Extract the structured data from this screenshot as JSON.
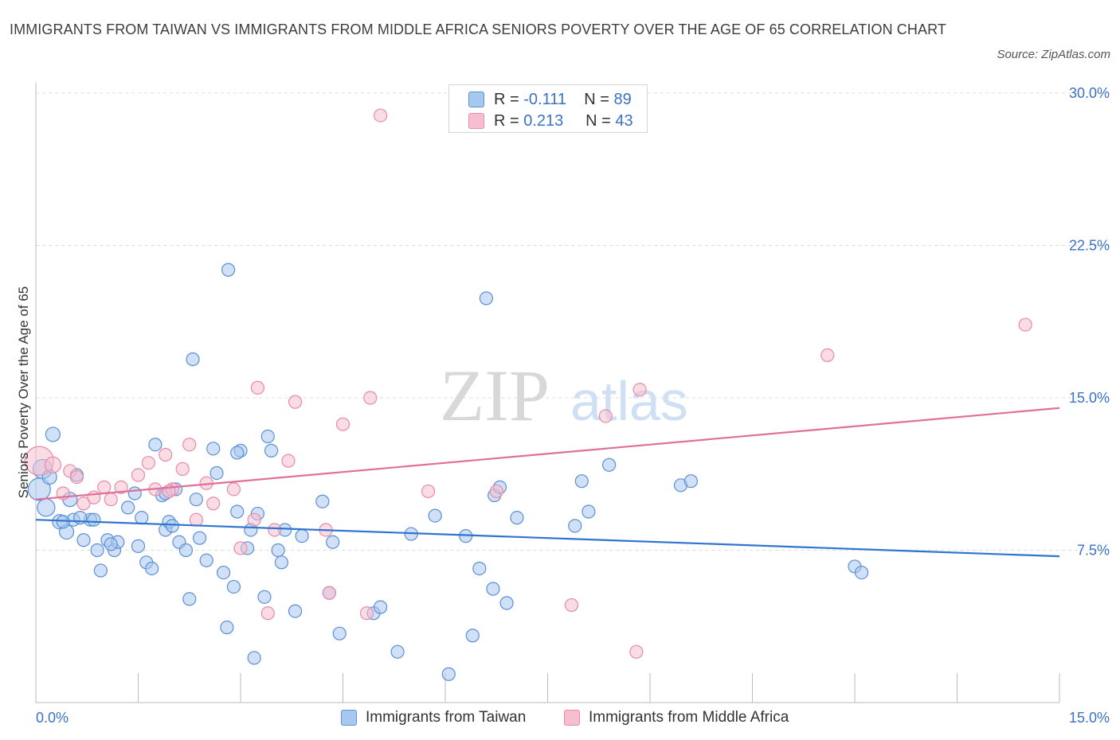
{
  "title": "IMMIGRANTS FROM TAIWAN VS IMMIGRANTS FROM MIDDLE AFRICA SENIORS POVERTY OVER THE AGE OF 65 CORRELATION CHART",
  "source": "Source: ZipAtlas.com",
  "watermark": {
    "zip": "ZIP",
    "atlas": "atlas"
  },
  "colors": {
    "taiwan_fill": "#a9c8f0",
    "taiwan_stroke": "#5b8fd6",
    "taiwan_line": "#2f74cf",
    "africa_fill": "#f6bfd0",
    "africa_stroke": "#e88aa8",
    "africa_line": "#e06f99",
    "tick_text": "#3a72c4",
    "grid": "#dcdcdc"
  },
  "legend_top": [
    {
      "r_label": "R =",
      "r_value": "-0.111",
      "n_label": "N =",
      "n_value": "89"
    },
    {
      "r_label": "R =",
      "r_value": "0.213",
      "n_label": "N =",
      "n_value": "43"
    }
  ],
  "legend_bottom": [
    "Immigrants from Taiwan",
    "Immigrants from Middle Africa"
  ],
  "chart_data": {
    "type": "scatter",
    "title": "IMMIGRANTS FROM TAIWAN VS IMMIGRANTS FROM MIDDLE AFRICA SENIORS POVERTY OVER THE AGE OF 65 CORRELATION CHART",
    "xlabel": "",
    "ylabel": "Seniors Poverty Over the Age of 65",
    "xlim": [
      0,
      15
    ],
    "ylim": [
      0,
      30
    ],
    "x_ticks": [
      "0.0%",
      "15.0%"
    ],
    "y_ticks": [
      {
        "value": 7.5,
        "label": "7.5%"
      },
      {
        "value": 15,
        "label": "15.0%"
      },
      {
        "value": 22.5,
        "label": "22.5%"
      },
      {
        "value": 30,
        "label": "30.0%"
      }
    ],
    "grid": "horizontal dashed",
    "legend_position": "top-center",
    "series": [
      {
        "name": "Immigrants from Taiwan",
        "color": "#a9c8f0",
        "trend": {
          "x": [
            0,
            15
          ],
          "y": [
            9.0,
            7.2
          ]
        },
        "points": [
          [
            0.1,
            11.5,
            12
          ],
          [
            0.05,
            10.5,
            14
          ],
          [
            0.15,
            9.6,
            11
          ],
          [
            0.25,
            13.2,
            9
          ],
          [
            0.2,
            11.1,
            9
          ],
          [
            0.35,
            8.9,
            9
          ],
          [
            0.45,
            8.4,
            9
          ],
          [
            0.5,
            10,
            9
          ],
          [
            0.6,
            11.2,
            8
          ],
          [
            0.7,
            8,
            8
          ],
          [
            0.8,
            9,
            8
          ],
          [
            0.9,
            7.5,
            8
          ],
          [
            0.95,
            6.5,
            8
          ],
          [
            1.05,
            8,
            8
          ],
          [
            1.15,
            7.5,
            8
          ],
          [
            1.2,
            7.9,
            8
          ],
          [
            1.35,
            9.6,
            8
          ],
          [
            1.45,
            10.3,
            8
          ],
          [
            1.5,
            7.7,
            8
          ],
          [
            1.55,
            9.1,
            8
          ],
          [
            1.62,
            6.9,
            8
          ],
          [
            1.7,
            6.6,
            8
          ],
          [
            1.75,
            12.7,
            8
          ],
          [
            1.85,
            10.2,
            8
          ],
          [
            1.9,
            8.5,
            8
          ],
          [
            1.95,
            8.9,
            8
          ],
          [
            2.0,
            8.7,
            8
          ],
          [
            2.05,
            10.5,
            8
          ],
          [
            2.1,
            7.9,
            8
          ],
          [
            2.2,
            7.5,
            8
          ],
          [
            2.25,
            5.1,
            8
          ],
          [
            2.3,
            16.9,
            8
          ],
          [
            2.35,
            10.0,
            8
          ],
          [
            2.4,
            8.1,
            8
          ],
          [
            2.5,
            7.0,
            8
          ],
          [
            2.6,
            12.5,
            8
          ],
          [
            2.65,
            11.3,
            8
          ],
          [
            2.75,
            6.4,
            8
          ],
          [
            2.8,
            3.7,
            8
          ],
          [
            2.82,
            21.3,
            8
          ],
          [
            2.9,
            5.7,
            8
          ],
          [
            2.95,
            9.4,
            8
          ],
          [
            3.0,
            12.4,
            8
          ],
          [
            3.1,
            7.6,
            8
          ],
          [
            3.15,
            8.5,
            8
          ],
          [
            3.2,
            2.2,
            8
          ],
          [
            3.25,
            9.3,
            8
          ],
          [
            3.35,
            5.2,
            8
          ],
          [
            3.4,
            13.1,
            8
          ],
          [
            3.45,
            12.4,
            8
          ],
          [
            3.55,
            7.5,
            8
          ],
          [
            3.6,
            6.9,
            8
          ],
          [
            3.8,
            4.5,
            8
          ],
          [
            3.9,
            8.2,
            8
          ],
          [
            4.2,
            9.9,
            8
          ],
          [
            4.3,
            5.4,
            8
          ],
          [
            4.35,
            7.9,
            8
          ],
          [
            4.45,
            3.4,
            8
          ],
          [
            4.95,
            4.4,
            8
          ],
          [
            5.05,
            4.7,
            8
          ],
          [
            5.3,
            2.5,
            8
          ],
          [
            5.5,
            8.3,
            8
          ],
          [
            5.85,
            9.2,
            8
          ],
          [
            6.05,
            1.4,
            8
          ],
          [
            6.3,
            8.2,
            8
          ],
          [
            6.4,
            3.3,
            8
          ],
          [
            6.5,
            6.6,
            8
          ],
          [
            6.6,
            19.9,
            8
          ],
          [
            6.7,
            5.6,
            8
          ],
          [
            6.72,
            10.2,
            8
          ],
          [
            6.8,
            10.6,
            8
          ],
          [
            6.9,
            4.9,
            8
          ],
          [
            7.05,
            9.1,
            8
          ],
          [
            7.9,
            8.7,
            8
          ],
          [
            8.0,
            10.9,
            8
          ],
          [
            8.1,
            9.4,
            8
          ],
          [
            8.4,
            11.7,
            8
          ],
          [
            9.45,
            10.7,
            8
          ],
          [
            9.6,
            10.9,
            8
          ],
          [
            12.0,
            6.7,
            8
          ],
          [
            12.1,
            6.4,
            8
          ],
          [
            0.55,
            9.0,
            8
          ],
          [
            0.65,
            9.1,
            8
          ],
          [
            1.1,
            7.8,
            8
          ],
          [
            1.9,
            10.3,
            8
          ],
          [
            2.95,
            12.3,
            8
          ],
          [
            3.65,
            8.5,
            8
          ],
          [
            0.85,
            9.0,
            8
          ],
          [
            0.4,
            8.9,
            8
          ]
        ]
      },
      {
        "name": "Immigrants from Middle Africa",
        "color": "#f6bfd0",
        "trend": {
          "x": [
            0,
            15
          ],
          "y": [
            10.0,
            14.5
          ]
        },
        "points": [
          [
            0.05,
            11.9,
            18
          ],
          [
            0.25,
            11.7,
            10
          ],
          [
            0.4,
            10.3,
            8
          ],
          [
            0.5,
            11.4,
            8
          ],
          [
            0.6,
            11.1,
            8
          ],
          [
            0.7,
            9.8,
            8
          ],
          [
            0.85,
            10.1,
            8
          ],
          [
            1.0,
            10.6,
            8
          ],
          [
            1.1,
            10.0,
            8
          ],
          [
            1.25,
            10.6,
            8
          ],
          [
            1.5,
            11.2,
            8
          ],
          [
            1.65,
            11.8,
            8
          ],
          [
            1.75,
            10.5,
            8
          ],
          [
            1.9,
            12.2,
            8
          ],
          [
            2.0,
            10.5,
            8
          ],
          [
            2.15,
            11.5,
            8
          ],
          [
            2.25,
            12.7,
            8
          ],
          [
            2.35,
            9.0,
            8
          ],
          [
            2.5,
            10.8,
            8
          ],
          [
            2.6,
            9.8,
            8
          ],
          [
            2.9,
            10.5,
            8
          ],
          [
            3.0,
            7.6,
            8
          ],
          [
            3.2,
            9.0,
            8
          ],
          [
            3.25,
            15.5,
            8
          ],
          [
            3.4,
            4.4,
            8
          ],
          [
            3.5,
            8.5,
            8
          ],
          [
            3.7,
            11.9,
            8
          ],
          [
            3.8,
            14.8,
            8
          ],
          [
            4.25,
            8.5,
            8
          ],
          [
            4.3,
            5.4,
            8
          ],
          [
            4.5,
            13.7,
            8
          ],
          [
            4.85,
            4.4,
            8
          ],
          [
            4.9,
            15.0,
            8
          ],
          [
            5.05,
            28.9,
            8
          ],
          [
            5.75,
            10.4,
            8
          ],
          [
            6.75,
            10.4,
            8
          ],
          [
            7.85,
            4.8,
            8
          ],
          [
            8.35,
            14.1,
            8
          ],
          [
            8.8,
            2.5,
            8
          ],
          [
            8.85,
            15.4,
            8
          ],
          [
            11.6,
            17.1,
            8
          ],
          [
            14.5,
            18.6,
            8
          ],
          [
            1.95,
            10.4,
            8
          ]
        ]
      }
    ]
  }
}
